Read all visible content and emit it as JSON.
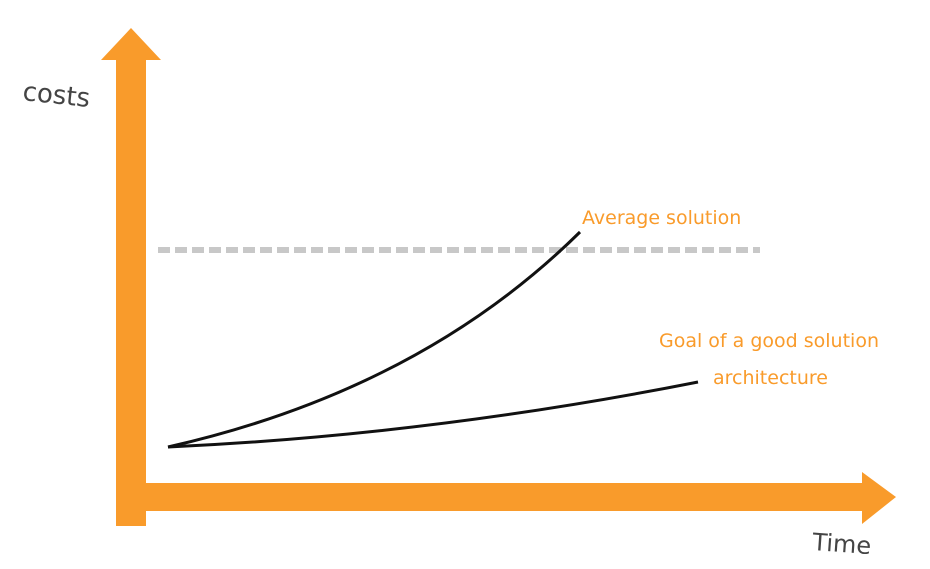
{
  "colors": {
    "axis": "#f99b2b",
    "curve": "#111111",
    "threshold": "#c8c8c8",
    "label_accent": "#f99b2b",
    "label_axis": "#444444"
  },
  "axes": {
    "y_label": "costs",
    "x_label": "Time"
  },
  "curves": [
    {
      "id": "average",
      "label": "Average solution"
    },
    {
      "id": "good",
      "label_line1": "Goal of a good solution",
      "label_line2": "architecture"
    }
  ],
  "threshold": {
    "style": "dashed"
  }
}
